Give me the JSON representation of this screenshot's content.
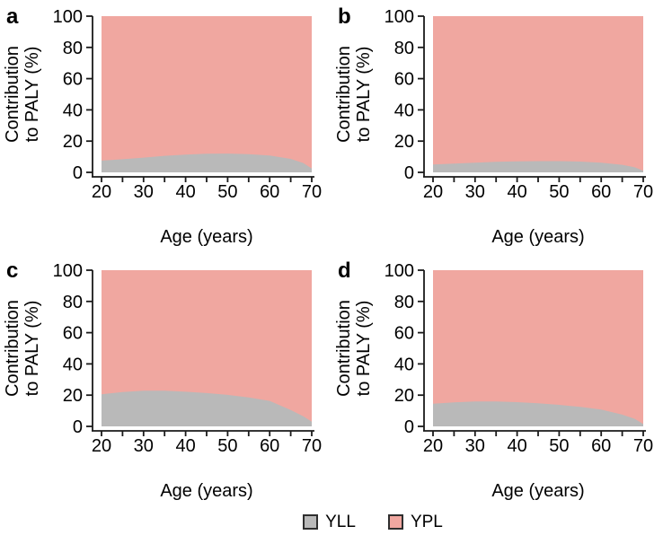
{
  "figure": {
    "background": "#ffffff",
    "axis_color": "#1a1a1a",
    "text_color": "#000000"
  },
  "legend": {
    "entries": [
      {
        "name": "yll",
        "label": "YLL",
        "color": "#b9b9b9",
        "border": "#2e2e2e"
      },
      {
        "name": "ypl",
        "label": "YPL",
        "color": "#f0a7a0",
        "border": "#2e2e2e"
      }
    ]
  },
  "chart_data": [
    {
      "type": "area",
      "panel_label": "a",
      "xlabel": "Age (years)",
      "ylabel_lines": [
        "Contribution",
        "to PALY (%)"
      ],
      "xlim": [
        20,
        70
      ],
      "ylim": [
        0,
        100
      ],
      "x_major_ticks": [
        20,
        30,
        40,
        50,
        60,
        70
      ],
      "x_minor_ticks": [
        25,
        35,
        45,
        55,
        65
      ],
      "y_ticks": [
        0,
        20,
        40,
        60,
        80,
        100
      ],
      "grid": false,
      "x": [
        20,
        25,
        30,
        35,
        40,
        45,
        50,
        55,
        60,
        65,
        68,
        70
      ],
      "series": [
        {
          "name": "YLL",
          "color": "#b9b9b9",
          "values": [
            7.5,
            8.4,
            9.4,
            10.6,
            11.4,
            11.9,
            12.0,
            11.6,
            10.8,
            8.6,
            6.0,
            2.5
          ]
        },
        {
          "name": "YPL",
          "color": "#f0a7a0",
          "values": [
            92.5,
            91.6,
            90.6,
            89.4,
            88.6,
            88.1,
            88.0,
            88.4,
            89.2,
            91.4,
            94.0,
            97.5
          ]
        }
      ]
    },
    {
      "type": "area",
      "panel_label": "b",
      "xlabel": "Age (years)",
      "ylabel_lines": [
        "Contribution",
        "to PALY (%)"
      ],
      "xlim": [
        20,
        70
      ],
      "ylim": [
        0,
        100
      ],
      "x_major_ticks": [
        20,
        30,
        40,
        50,
        60,
        70
      ],
      "x_minor_ticks": [
        25,
        35,
        45,
        55,
        65
      ],
      "y_ticks": [
        0,
        20,
        40,
        60,
        80,
        100
      ],
      "grid": false,
      "x": [
        20,
        25,
        30,
        35,
        40,
        45,
        50,
        55,
        60,
        65,
        68,
        70
      ],
      "series": [
        {
          "name": "YLL",
          "color": "#b9b9b9",
          "values": [
            5.0,
            5.6,
            6.2,
            6.7,
            7.0,
            7.2,
            7.2,
            6.9,
            6.2,
            4.8,
            3.2,
            1.0
          ]
        },
        {
          "name": "YPL",
          "color": "#f0a7a0",
          "values": [
            95.0,
            94.4,
            93.8,
            93.3,
            93.0,
            92.8,
            92.8,
            93.1,
            93.8,
            95.2,
            96.8,
            99.0
          ]
        }
      ]
    },
    {
      "type": "area",
      "panel_label": "c",
      "xlabel": "Age (years)",
      "ylabel_lines": [
        "Contribution",
        "to PALY (%)"
      ],
      "xlim": [
        20,
        70
      ],
      "ylim": [
        0,
        100
      ],
      "x_major_ticks": [
        20,
        30,
        40,
        50,
        60,
        70
      ],
      "x_minor_ticks": [
        25,
        35,
        45,
        55,
        65
      ],
      "y_ticks": [
        0,
        20,
        40,
        60,
        80,
        100
      ],
      "grid": false,
      "x": [
        20,
        25,
        30,
        35,
        40,
        45,
        50,
        55,
        60,
        65,
        68,
        70
      ],
      "series": [
        {
          "name": "YLL",
          "color": "#b9b9b9",
          "values": [
            20.5,
            22.0,
            22.8,
            22.8,
            22.2,
            21.3,
            20.2,
            18.5,
            16.3,
            10.5,
            6.5,
            3.0
          ]
        },
        {
          "name": "YPL",
          "color": "#f0a7a0",
          "values": [
            79.5,
            78.0,
            77.2,
            77.2,
            77.8,
            78.7,
            79.8,
            81.5,
            83.7,
            89.5,
            93.5,
            97.0
          ]
        }
      ]
    },
    {
      "type": "area",
      "panel_label": "d",
      "xlabel": "Age (years)",
      "ylabel_lines": [
        "Contribution",
        "to PALY (%)"
      ],
      "xlim": [
        20,
        70
      ],
      "ylim": [
        0,
        100
      ],
      "x_major_ticks": [
        20,
        30,
        40,
        50,
        60,
        70
      ],
      "x_minor_ticks": [
        25,
        35,
        45,
        55,
        65
      ],
      "y_ticks": [
        0,
        20,
        40,
        60,
        80,
        100
      ],
      "grid": false,
      "x": [
        20,
        25,
        30,
        35,
        40,
        45,
        50,
        55,
        60,
        65,
        68,
        70
      ],
      "series": [
        {
          "name": "YLL",
          "color": "#b9b9b9",
          "values": [
            14.5,
            15.4,
            16.0,
            16.0,
            15.5,
            14.8,
            13.8,
            12.5,
            10.8,
            7.5,
            4.8,
            1.5
          ]
        },
        {
          "name": "YPL",
          "color": "#f0a7a0",
          "values": [
            85.5,
            84.6,
            84.0,
            84.0,
            84.5,
            85.2,
            86.2,
            87.5,
            89.2,
            92.5,
            95.2,
            98.5
          ]
        }
      ]
    }
  ]
}
